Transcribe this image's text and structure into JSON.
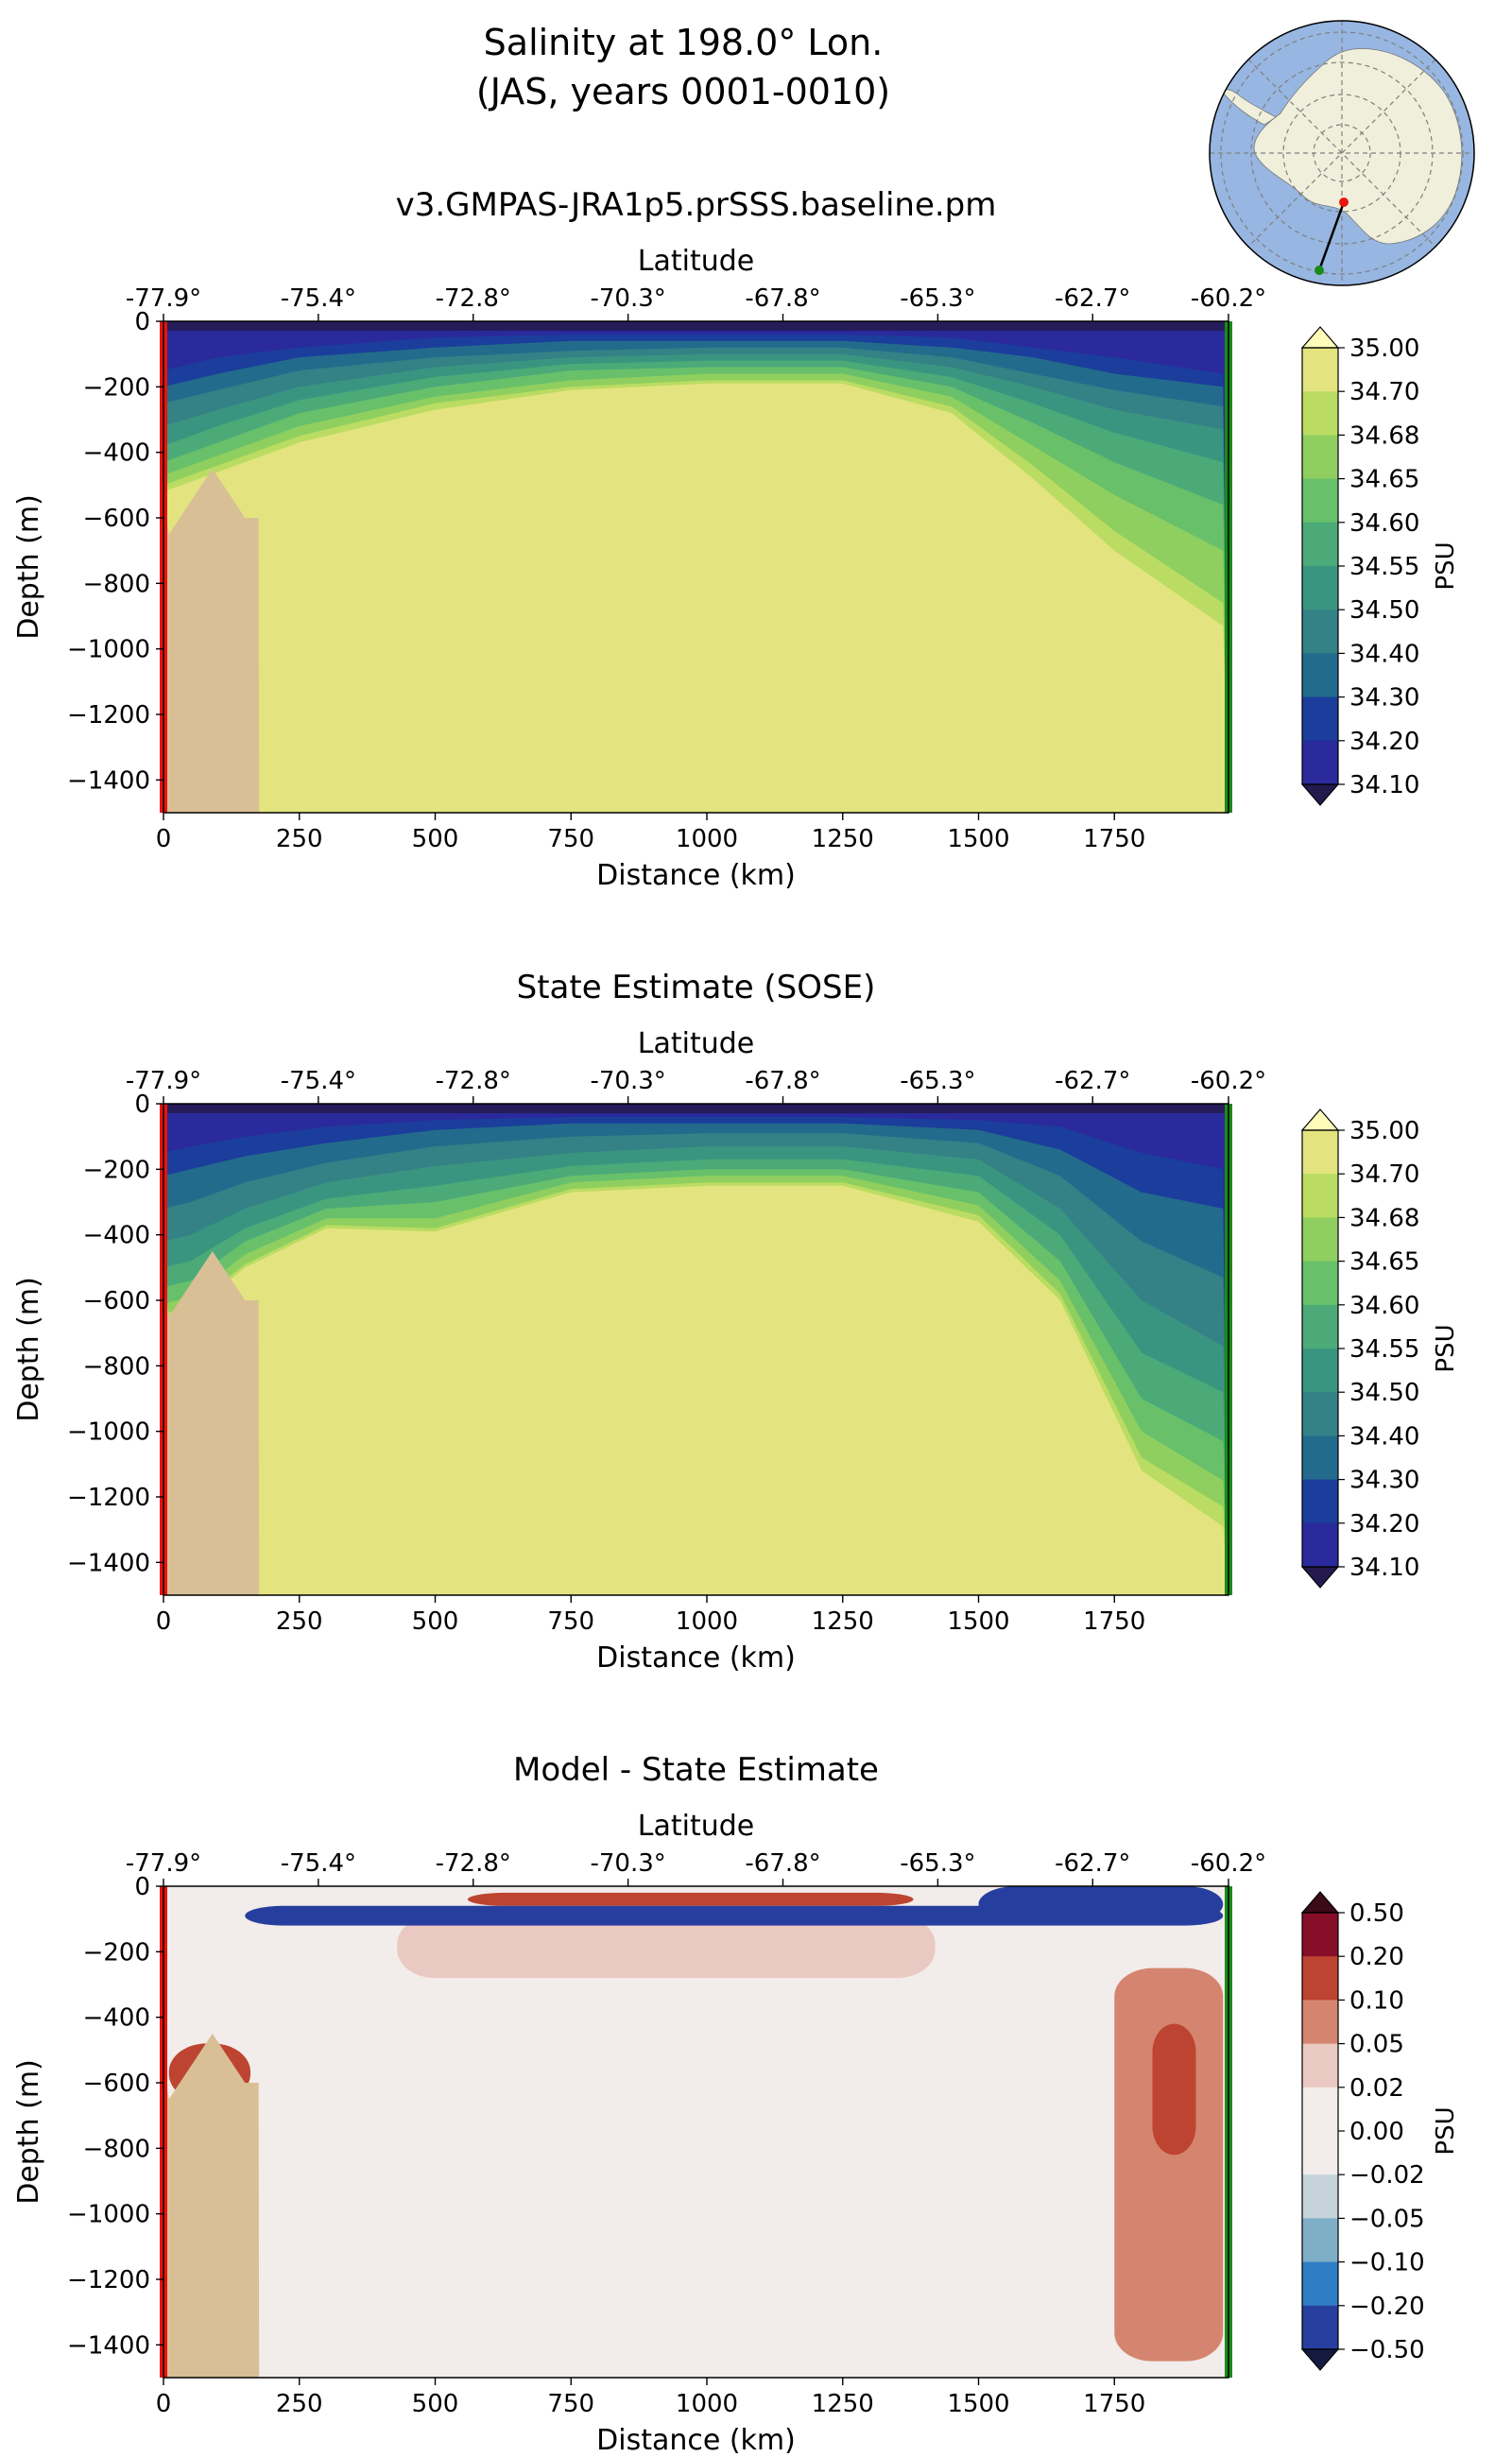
{
  "figure": {
    "suptitle_line1": "Salinity at 198.0° Lon.",
    "suptitle_line2": "(JAS, years 0001-0010)"
  },
  "inset_map": {
    "description": "South-polar orthographic map showing the transect",
    "colors": {
      "ocean": "#97b6e1",
      "land": "#efefdb",
      "grid": "#7f7f7f",
      "start": "#e8140e",
      "end": "#1a8a1a",
      "line": "#000000"
    }
  },
  "colorbars": {
    "salinity": {
      "label": "PSU",
      "ticks": [
        "35.00",
        "34.70",
        "34.68",
        "34.65",
        "34.60",
        "34.55",
        "34.50",
        "34.40",
        "34.30",
        "34.20",
        "34.10"
      ],
      "colors": [
        "#e3e47f",
        "#bbdc62",
        "#8fcf5f",
        "#68c06b",
        "#4baa77",
        "#3a9580",
        "#348186",
        "#236b8c",
        "#1b3d9b",
        "#2a2a9c"
      ],
      "over_color": "#fdfcb9",
      "under_color": "#241a4e"
    },
    "diff": {
      "label": "PSU",
      "ticks": [
        "0.50",
        "0.20",
        "0.10",
        "0.05",
        "0.02",
        "0.00",
        "−0.02",
        "−0.05",
        "−0.10",
        "−0.20",
        "−0.50"
      ],
      "colors": [
        "#860e28",
        "#bd4430",
        "#d5856f",
        "#e9c9c1",
        "#f2ecea",
        "#f2ecea",
        "#c5d2da",
        "#7eafc7",
        "#2f7dc2",
        "#263f9f"
      ],
      "over_color": "#3b0b17",
      "under_color": "#161a40"
    }
  },
  "panels": [
    {
      "id": "model",
      "title": "v3.GMPAS-JRA1p5.prSSS.baseline.pm",
      "top_axis_label": "Latitude",
      "lat_ticks": [
        "-77.9°",
        "-75.4°",
        "-72.8°",
        "-70.3°",
        "-67.8°",
        "-65.3°",
        "-62.7°",
        "-60.2°"
      ],
      "xlabel": "Distance (km)",
      "ylabel": "Depth (m)",
      "x_ticks": [
        "0",
        "250",
        "500",
        "750",
        "1000",
        "1250",
        "1500",
        "1750"
      ],
      "y_ticks": [
        "0",
        "−200",
        "−400",
        "−600",
        "−800",
        "−1000",
        "−1200",
        "−1400"
      ]
    },
    {
      "id": "sose",
      "title": "State Estimate (SOSE)",
      "top_axis_label": "Latitude",
      "lat_ticks": [
        "-77.9°",
        "-75.4°",
        "-72.8°",
        "-70.3°",
        "-67.8°",
        "-65.3°",
        "-62.7°",
        "-60.2°"
      ],
      "xlabel": "Distance (km)",
      "ylabel": "Depth (m)",
      "x_ticks": [
        "0",
        "250",
        "500",
        "750",
        "1000",
        "1250",
        "1500",
        "1750"
      ],
      "y_ticks": [
        "0",
        "−200",
        "−400",
        "−600",
        "−800",
        "−1000",
        "−1200",
        "−1400"
      ]
    },
    {
      "id": "diff",
      "title": "Model - State Estimate",
      "top_axis_label": "Latitude",
      "lat_ticks": [
        "-77.9°",
        "-75.4°",
        "-72.8°",
        "-70.3°",
        "-67.8°",
        "-65.3°",
        "-62.7°",
        "-60.2°"
      ],
      "xlabel": "Distance (km)",
      "ylabel": "Depth (m)",
      "x_ticks": [
        "0",
        "250",
        "500",
        "750",
        "1000",
        "1250",
        "1500",
        "1750"
      ],
      "y_ticks": [
        "0",
        "−200",
        "−400",
        "−600",
        "−800",
        "−1000",
        "−1200",
        "−1400"
      ]
    }
  ],
  "chart_data": [
    {
      "type": "heatmap",
      "title": "v3.GMPAS-JRA1p5.prSSS.baseline.pm",
      "xlabel": "Distance (km)",
      "ylabel": "Depth (m)",
      "colorbar_label": "PSU",
      "xlim": [
        0,
        1960
      ],
      "ylim": [
        -1500,
        0
      ],
      "x_ticks": [
        0,
        250,
        500,
        750,
        1000,
        1250,
        1500,
        1750
      ],
      "y_ticks": [
        0,
        -200,
        -400,
        -600,
        -800,
        -1000,
        -1200,
        -1400
      ],
      "secondary_x": {
        "label": "Latitude",
        "ticks_deg": [
          -77.9,
          -75.4,
          -72.8,
          -70.3,
          -67.8,
          -65.3,
          -62.7,
          -60.2
        ]
      },
      "levels": [
        34.1,
        34.2,
        34.3,
        34.4,
        34.5,
        34.55,
        34.6,
        34.65,
        34.68,
        34.7,
        35.0
      ],
      "isoline_depths_m": {
        "x_km": [
          0,
          100,
          250,
          500,
          750,
          1000,
          1250,
          1450,
          1600,
          1750,
          1950
        ],
        "34.2": [
          -150,
          -110,
          -80,
          -50,
          -40,
          -40,
          -40,
          -50,
          -80,
          -110,
          -160
        ],
        "34.3": [
          -200,
          -160,
          -110,
          -80,
          -60,
          -60,
          -60,
          -80,
          -110,
          -160,
          -200
        ],
        "34.4": [
          -250,
          -210,
          -150,
          -110,
          -90,
          -80,
          -80,
          -110,
          -160,
          -210,
          -260
        ],
        "34.5": [
          -320,
          -270,
          -200,
          -140,
          -110,
          -100,
          -100,
          -140,
          -200,
          -270,
          -330
        ],
        "34.55": [
          -380,
          -320,
          -240,
          -170,
          -130,
          -120,
          -120,
          -170,
          -250,
          -340,
          -430
        ],
        "34.6": [
          -430,
          -370,
          -280,
          -200,
          -150,
          -140,
          -140,
          -200,
          -310,
          -430,
          -560
        ],
        "34.65": [
          -470,
          -410,
          -320,
          -230,
          -180,
          -160,
          -160,
          -230,
          -380,
          -530,
          -700
        ],
        "34.68": [
          -500,
          -440,
          -350,
          -250,
          -200,
          -180,
          -180,
          -260,
          -440,
          -640,
          -860
        ],
        "34.7": [
          -520,
          -460,
          -370,
          -270,
          -210,
          -190,
          -190,
          -280,
          -480,
          -700,
          -930
        ]
      },
      "bathymetry": {
        "x_km": [
          0,
          10,
          90,
          150,
          175,
          176
        ],
        "depth_m": [
          -550,
          -650,
          -450,
          -600,
          -600,
          -1500
        ]
      },
      "transect_start_color": "#e8140e",
      "transect_end_color": "#1a8a1a"
    },
    {
      "type": "heatmap",
      "title": "State Estimate (SOSE)",
      "xlabel": "Distance (km)",
      "ylabel": "Depth (m)",
      "colorbar_label": "PSU",
      "xlim": [
        0,
        1960
      ],
      "ylim": [
        -1500,
        0
      ],
      "x_ticks": [
        0,
        250,
        500,
        750,
        1000,
        1250,
        1500,
        1750
      ],
      "y_ticks": [
        0,
        -200,
        -400,
        -600,
        -800,
        -1000,
        -1200,
        -1400
      ],
      "secondary_x": {
        "label": "Latitude",
        "ticks_deg": [
          -77.9,
          -75.4,
          -72.8,
          -70.3,
          -67.8,
          -65.3,
          -62.7,
          -60.2
        ]
      },
      "levels": [
        34.1,
        34.2,
        34.3,
        34.4,
        34.5,
        34.55,
        34.6,
        34.65,
        34.68,
        34.7,
        35.0
      ],
      "isoline_depths_m": {
        "x_km": [
          0,
          50,
          150,
          300,
          500,
          750,
          1000,
          1250,
          1500,
          1650,
          1800,
          1950
        ],
        "34.2": [
          -150,
          -130,
          -100,
          -70,
          -50,
          -40,
          -40,
          -40,
          -50,
          -70,
          -150,
          -200
        ],
        "34.3": [
          -220,
          -200,
          -160,
          -120,
          -80,
          -60,
          -60,
          -60,
          -80,
          -140,
          -270,
          -320
        ],
        "34.4": [
          -320,
          -300,
          -240,
          -180,
          -130,
          -100,
          -90,
          -90,
          -120,
          -220,
          -420,
          -530
        ],
        "34.5": [
          -420,
          -400,
          -320,
          -240,
          -190,
          -150,
          -130,
          -130,
          -170,
          -320,
          -600,
          -740
        ],
        "34.55": [
          -500,
          -480,
          -380,
          -290,
          -250,
          -190,
          -170,
          -170,
          -220,
          -400,
          -760,
          -880
        ],
        "34.6": [
          -560,
          -540,
          -420,
          -320,
          -300,
          -220,
          -200,
          -200,
          -270,
          -480,
          -900,
          -1030
        ],
        "34.65": [
          -610,
          -590,
          -460,
          -350,
          -350,
          -240,
          -220,
          -220,
          -310,
          -540,
          -1000,
          -1150
        ],
        "34.68": [
          -640,
          -620,
          -490,
          -370,
          -380,
          -260,
          -240,
          -240,
          -340,
          -580,
          -1080,
          -1230
        ],
        "34.7": [
          -660,
          -640,
          -500,
          -380,
          -390,
          -270,
          -250,
          -250,
          -360,
          -600,
          -1120,
          -1290
        ]
      },
      "bathymetry": {
        "x_km": [
          0,
          10,
          90,
          150,
          175,
          176
        ],
        "depth_m": [
          -550,
          -650,
          -450,
          -600,
          -600,
          -1500
        ]
      },
      "transect_start_color": "#e8140e",
      "transect_end_color": "#1a8a1a"
    },
    {
      "type": "heatmap",
      "title": "Model - State Estimate",
      "xlabel": "Distance (km)",
      "ylabel": "Depth (m)",
      "colorbar_label": "PSU",
      "xlim": [
        0,
        1960
      ],
      "ylim": [
        -1500,
        0
      ],
      "x_ticks": [
        0,
        250,
        500,
        750,
        1000,
        1250,
        1500,
        1750
      ],
      "y_ticks": [
        0,
        -200,
        -400,
        -600,
        -800,
        -1000,
        -1200,
        -1400
      ],
      "secondary_x": {
        "label": "Latitude",
        "ticks_deg": [
          -77.9,
          -75.4,
          -72.8,
          -70.3,
          -67.8,
          -65.3,
          -62.7,
          -60.2
        ]
      },
      "levels": [
        -0.5,
        -0.2,
        -0.1,
        -0.05,
        -0.02,
        0.0,
        0.02,
        0.05,
        0.1,
        0.2,
        0.5
      ],
      "background_value": 0.0,
      "regions": [
        {
          "feature": "near-surface positive layer",
          "x_km_range": [
            560,
            1380
          ],
          "depth_m_range": [
            -60,
            -20
          ],
          "value": 0.2
        },
        {
          "feature": "positive subsurface lens",
          "x_km_range": [
            430,
            1420
          ],
          "depth_m_range": [
            -280,
            -90
          ],
          "value": 0.05
        },
        {
          "feature": "cold-fresh band under surface",
          "x_km_range": [
            150,
            1950
          ],
          "depth_m_range": [
            -120,
            -60
          ],
          "value": -0.2
        },
        {
          "feature": "coastal positive pocket",
          "x_km_range": [
            10,
            160
          ],
          "depth_m_range": [
            -660,
            -480
          ],
          "value": 0.2
        },
        {
          "feature": "northern surface negative layer",
          "x_km_range": [
            1500,
            1950
          ],
          "depth_m_range": [
            -110,
            0
          ],
          "value": -0.5
        },
        {
          "feature": "northern deep positive tongue",
          "x_km_range": [
            1750,
            1950
          ],
          "depth_m_range": [
            -1450,
            -250
          ],
          "value": 0.1
        },
        {
          "feature": "northern deep core",
          "x_km_range": [
            1820,
            1900
          ],
          "depth_m_range": [
            -820,
            -420
          ],
          "value": 0.2
        }
      ],
      "bathymetry": {
        "x_km": [
          0,
          10,
          90,
          150,
          175,
          176
        ],
        "depth_m": [
          -550,
          -650,
          -450,
          -600,
          -600,
          -1500
        ]
      },
      "transect_start_color": "#e8140e",
      "transect_end_color": "#1a8a1a"
    }
  ]
}
